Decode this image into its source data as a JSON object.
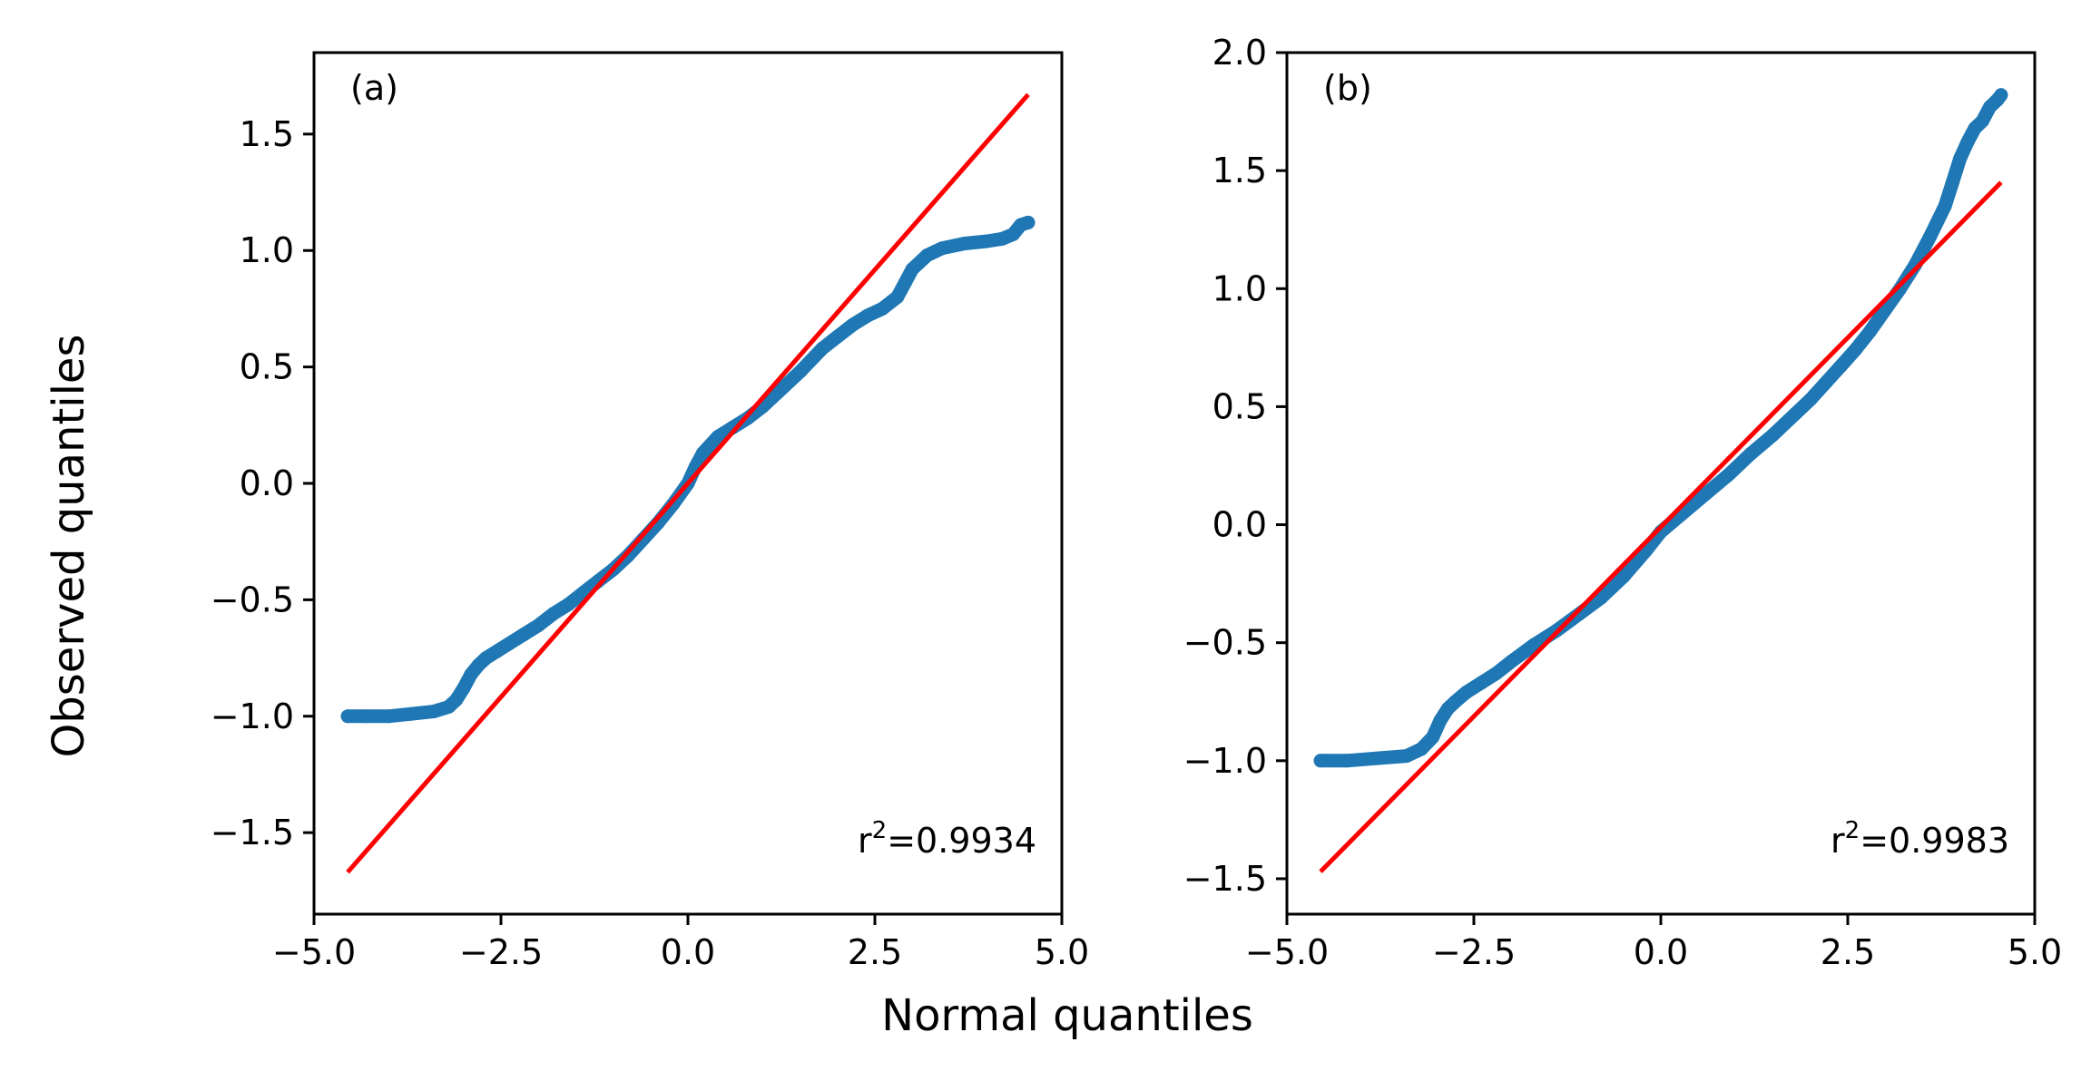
{
  "figure": {
    "xlabel": "Normal quantiles",
    "ylabel": "Observed quantiles"
  },
  "colors": {
    "points": "#1f77b4",
    "fit_line": "#ff0000",
    "axes": "#000000",
    "background": "#ffffff"
  },
  "chart_data": [
    {
      "type": "scatter",
      "panel_label": "(a)",
      "annotation": "r²=0.9934",
      "r2_prefix": "r",
      "r2_sup": "2",
      "r2_value": "=0.9934",
      "xlim": [
        -5.0,
        5.0
      ],
      "ylim": [
        -1.85,
        1.85
      ],
      "xticks": [
        -5.0,
        -2.5,
        0.0,
        2.5,
        5.0
      ],
      "xtick_labels": [
        "−5.0",
        "−2.5",
        "0.0",
        "2.5",
        "5.0"
      ],
      "yticks": [
        -1.5,
        -1.0,
        -0.5,
        0.0,
        0.5,
        1.0,
        1.5
      ],
      "ytick_labels": [
        "−1.5",
        "−1.0",
        "−0.5",
        "0.0",
        "0.5",
        "1.0",
        "1.5"
      ],
      "series": [
        {
          "name": "observed",
          "kind": "points",
          "x": [
            -4.55,
            -4.3,
            -4.0,
            -3.7,
            -3.4,
            -3.2,
            -3.1,
            -3.0,
            -2.9,
            -2.8,
            -2.7,
            -2.55,
            -2.4,
            -2.2,
            -2.0,
            -1.8,
            -1.6,
            -1.4,
            -1.2,
            -1.0,
            -0.8,
            -0.6,
            -0.4,
            -0.2,
            0.0,
            0.1,
            0.2,
            0.4,
            0.6,
            0.8,
            1.0,
            1.2,
            1.5,
            1.8,
            2.0,
            2.2,
            2.4,
            2.6,
            2.8,
            2.9,
            3.0,
            3.2,
            3.4,
            3.7,
            4.0,
            4.2,
            4.35,
            4.45,
            4.55
          ],
          "y": [
            -1.0,
            -1.0,
            -1.0,
            -0.99,
            -0.98,
            -0.96,
            -0.93,
            -0.88,
            -0.82,
            -0.78,
            -0.75,
            -0.72,
            -0.69,
            -0.65,
            -0.61,
            -0.56,
            -0.52,
            -0.47,
            -0.42,
            -0.37,
            -0.31,
            -0.24,
            -0.17,
            -0.09,
            0.0,
            0.07,
            0.13,
            0.2,
            0.24,
            0.28,
            0.33,
            0.39,
            0.48,
            0.58,
            0.63,
            0.68,
            0.72,
            0.75,
            0.8,
            0.86,
            0.92,
            0.98,
            1.01,
            1.03,
            1.04,
            1.05,
            1.07,
            1.11,
            1.12
          ]
        },
        {
          "name": "reference line",
          "kind": "line",
          "x": [
            -4.55,
            4.55
          ],
          "y": [
            -1.67,
            1.67
          ]
        }
      ]
    },
    {
      "type": "scatter",
      "panel_label": "(b)",
      "annotation": "r²=0.9983",
      "r2_prefix": "r",
      "r2_sup": "2",
      "r2_value": "=0.9983",
      "xlim": [
        -5.0,
        5.0
      ],
      "ylim": [
        -1.65,
        2.0
      ],
      "xticks": [
        -5.0,
        -2.5,
        0.0,
        2.5,
        5.0
      ],
      "xtick_labels": [
        "−5.0",
        "−2.5",
        "0.0",
        "2.5",
        "5.0"
      ],
      "yticks": [
        -1.5,
        -1.0,
        -0.5,
        0.0,
        0.5,
        1.0,
        1.5,
        2.0
      ],
      "ytick_labels": [
        "−1.5",
        "−1.0",
        "−0.5",
        "0.0",
        "0.5",
        "1.0",
        "1.5",
        "2.0"
      ],
      "series": [
        {
          "name": "observed",
          "kind": "points",
          "x": [
            -4.55,
            -4.2,
            -3.8,
            -3.4,
            -3.2,
            -3.05,
            -2.95,
            -2.85,
            -2.75,
            -2.6,
            -2.4,
            -2.2,
            -2.0,
            -1.7,
            -1.4,
            -1.1,
            -0.8,
            -0.5,
            -0.2,
            0.0,
            0.3,
            0.6,
            0.9,
            1.2,
            1.5,
            1.8,
            2.0,
            2.2,
            2.4,
            2.6,
            2.8,
            3.0,
            3.2,
            3.4,
            3.6,
            3.8,
            3.9,
            4.0,
            4.1,
            4.2,
            4.3,
            4.4,
            4.5,
            4.55
          ],
          "y": [
            -1.0,
            -1.0,
            -0.99,
            -0.98,
            -0.95,
            -0.9,
            -0.83,
            -0.78,
            -0.75,
            -0.71,
            -0.67,
            -0.63,
            -0.58,
            -0.51,
            -0.45,
            -0.38,
            -0.31,
            -0.22,
            -0.11,
            -0.03,
            0.05,
            0.13,
            0.21,
            0.3,
            0.38,
            0.47,
            0.53,
            0.6,
            0.67,
            0.74,
            0.82,
            0.91,
            1.0,
            1.1,
            1.22,
            1.35,
            1.45,
            1.55,
            1.62,
            1.68,
            1.71,
            1.77,
            1.8,
            1.82
          ]
        },
        {
          "name": "reference line",
          "kind": "line",
          "x": [
            -4.55,
            4.55
          ],
          "y": [
            -1.47,
            1.45
          ]
        }
      ]
    }
  ]
}
